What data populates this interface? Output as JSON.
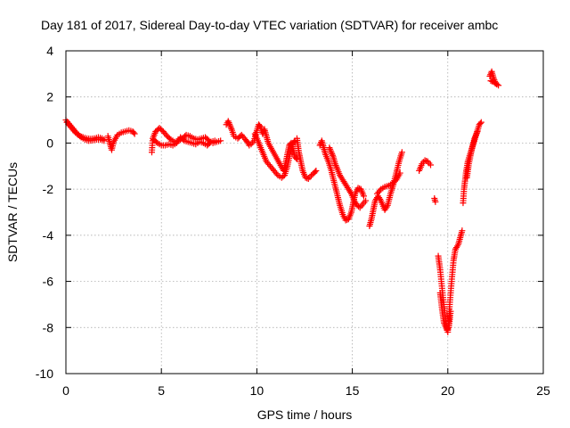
{
  "chart_data": {
    "type": "scatter",
    "title": "Day 181 of 2017, Sidereal Day-to-day VTEC variation (SDTVAR) for receiver ambc",
    "xlabel": "GPS time / hours",
    "ylabel": "SDTVAR / TECUs",
    "xlim": [
      0,
      25
    ],
    "ylim": [
      -10,
      4
    ],
    "xticks": [
      0,
      5,
      10,
      15,
      20,
      25
    ],
    "yticks": [
      -10,
      -8,
      -6,
      -4,
      -2,
      0,
      2,
      4
    ],
    "xtick_labels": [
      "0",
      "5",
      "10",
      "15",
      "20",
      "25"
    ],
    "ytick_labels": [
      "-10",
      "-8",
      "-6",
      "-4",
      "-2",
      "0",
      "2",
      "4"
    ],
    "grid": true,
    "marker": "+",
    "color": "#ff0000",
    "series": [
      {
        "name": "SDTVAR",
        "segments": [
          [
            [
              0.0,
              1.0
            ],
            [
              0.15,
              0.85
            ],
            [
              0.3,
              0.7
            ],
            [
              0.45,
              0.55
            ],
            [
              0.6,
              0.4
            ],
            [
              0.75,
              0.3
            ],
            [
              0.9,
              0.25
            ],
            [
              1.1,
              0.2
            ],
            [
              1.3,
              0.18
            ],
            [
              1.5,
              0.2
            ],
            [
              1.7,
              0.25
            ],
            [
              1.9,
              0.2
            ],
            [
              2.0,
              0.15
            ]
          ],
          [
            [
              0.05,
              0.9
            ],
            [
              0.2,
              0.75
            ],
            [
              0.35,
              0.6
            ],
            [
              0.5,
              0.45
            ],
            [
              0.65,
              0.35
            ],
            [
              0.8,
              0.25
            ],
            [
              1.0,
              0.15
            ],
            [
              1.2,
              0.1
            ],
            [
              1.4,
              0.12
            ],
            [
              1.6,
              0.15
            ],
            [
              1.8,
              0.15
            ],
            [
              2.0,
              0.1
            ]
          ],
          [
            [
              2.2,
              0.3
            ],
            [
              2.3,
              0.0
            ],
            [
              2.4,
              -0.3
            ],
            [
              2.5,
              0.05
            ],
            [
              2.7,
              0.35
            ],
            [
              2.9,
              0.45
            ],
            [
              3.1,
              0.5
            ],
            [
              3.3,
              0.55
            ],
            [
              3.5,
              0.5
            ],
            [
              3.6,
              0.4
            ]
          ],
          [
            [
              4.5,
              -0.4
            ],
            [
              4.55,
              0.2
            ],
            [
              4.7,
              0.5
            ],
            [
              4.9,
              0.65
            ],
            [
              5.1,
              0.5
            ],
            [
              5.3,
              0.3
            ],
            [
              5.5,
              0.15
            ],
            [
              5.7,
              0.05
            ],
            [
              5.9,
              0.1
            ],
            [
              6.1,
              0.2
            ],
            [
              6.3,
              0.35
            ],
            [
              6.5,
              0.3
            ],
            [
              6.7,
              0.2
            ],
            [
              6.9,
              0.15
            ],
            [
              7.1,
              0.2
            ],
            [
              7.3,
              0.25
            ],
            [
              7.5,
              0.1
            ],
            [
              7.7,
              0.0
            ],
            [
              7.9,
              0.05
            ],
            [
              8.1,
              0.1
            ]
          ],
          [
            [
              4.6,
              0.15
            ],
            [
              4.8,
              0.0
            ],
            [
              5.0,
              -0.1
            ],
            [
              5.2,
              -0.1
            ],
            [
              5.4,
              -0.05
            ],
            [
              5.6,
              -0.1
            ],
            [
              5.8,
              0.0
            ],
            [
              6.0,
              0.25
            ],
            [
              6.2,
              0.1
            ],
            [
              6.4,
              0.05
            ],
            [
              6.6,
              0.0
            ],
            [
              6.8,
              -0.05
            ],
            [
              7.0,
              0.05
            ],
            [
              7.2,
              0.0
            ],
            [
              7.4,
              -0.1
            ],
            [
              7.6,
              0.05
            ],
            [
              7.8,
              0.1
            ]
          ],
          [
            [
              8.4,
              0.8
            ],
            [
              8.5,
              0.95
            ],
            [
              8.6,
              0.75
            ],
            [
              8.7,
              0.55
            ],
            [
              8.8,
              0.3
            ],
            [
              9.0,
              0.2
            ],
            [
              9.2,
              0.35
            ],
            [
              9.4,
              0.15
            ],
            [
              9.5,
              0.05
            ],
            [
              9.6,
              -0.1
            ],
            [
              9.7,
              -0.05
            ],
            [
              9.85,
              0.1
            ],
            [
              10.0,
              0.55
            ],
            [
              10.1,
              0.8
            ],
            [
              10.2,
              0.7
            ],
            [
              10.3,
              0.4
            ],
            [
              10.4,
              0.6
            ],
            [
              10.5,
              0.3
            ],
            [
              10.6,
              0.0
            ],
            [
              10.8,
              -0.3
            ],
            [
              11.0,
              -0.6
            ],
            [
              11.2,
              -0.9
            ],
            [
              11.4,
              -1.2
            ],
            [
              11.5,
              -0.9
            ],
            [
              11.6,
              -0.5
            ],
            [
              11.7,
              -0.1
            ],
            [
              11.8,
              0.0
            ],
            [
              11.9,
              -0.3
            ],
            [
              12.0,
              -0.6
            ],
            [
              12.1,
              -0.7
            ]
          ],
          [
            [
              9.9,
              0.4
            ],
            [
              10.05,
              0.1
            ],
            [
              10.2,
              -0.2
            ],
            [
              10.35,
              -0.5
            ],
            [
              10.5,
              -0.8
            ],
            [
              10.7,
              -1.0
            ],
            [
              10.9,
              -1.2
            ],
            [
              11.1,
              -1.4
            ],
            [
              11.3,
              -1.5
            ],
            [
              11.45,
              -1.4
            ],
            [
              11.6,
              -1.0
            ],
            [
              11.75,
              -0.4
            ],
            [
              11.9,
              0.0
            ],
            [
              12.0,
              0.1
            ]
          ],
          [
            [
              12.1,
              0.2
            ],
            [
              12.2,
              -0.4
            ],
            [
              12.3,
              -0.8
            ],
            [
              12.4,
              -1.2
            ],
            [
              12.55,
              -1.5
            ],
            [
              12.7,
              -1.55
            ],
            [
              12.85,
              -1.4
            ],
            [
              13.0,
              -1.3
            ],
            [
              13.1,
              -1.2
            ]
          ],
          [
            [
              13.3,
              -0.1
            ],
            [
              13.4,
              0.1
            ],
            [
              13.5,
              -0.2
            ],
            [
              13.6,
              -0.5
            ],
            [
              13.75,
              -0.8
            ],
            [
              13.9,
              -1.2
            ],
            [
              14.05,
              -1.7
            ],
            [
              14.2,
              -2.2
            ],
            [
              14.35,
              -2.7
            ],
            [
              14.5,
              -3.1
            ],
            [
              14.65,
              -3.35
            ],
            [
              14.8,
              -3.3
            ],
            [
              14.95,
              -3.0
            ],
            [
              15.05,
              -2.6
            ],
            [
              15.15,
              -2.2
            ],
            [
              15.3,
              -1.95
            ],
            [
              15.45,
              -2.0
            ],
            [
              15.6,
              -2.3
            ]
          ],
          [
            [
              13.8,
              -0.2
            ],
            [
              13.9,
              -0.4
            ],
            [
              14.0,
              -0.6
            ],
            [
              14.1,
              -0.9
            ],
            [
              14.2,
              -1.1
            ],
            [
              14.35,
              -1.4
            ],
            [
              14.5,
              -1.6
            ],
            [
              14.65,
              -1.8
            ],
            [
              14.8,
              -2.0
            ],
            [
              14.95,
              -2.2
            ],
            [
              15.1,
              -2.5
            ],
            [
              15.25,
              -2.7
            ],
            [
              15.4,
              -2.8
            ],
            [
              15.55,
              -2.65
            ],
            [
              15.7,
              -2.5
            ]
          ],
          [
            [
              15.9,
              -3.6
            ],
            [
              16.0,
              -3.3
            ],
            [
              16.1,
              -2.9
            ],
            [
              16.2,
              -2.5
            ],
            [
              16.35,
              -2.3
            ],
            [
              16.5,
              -2.5
            ],
            [
              16.7,
              -2.9
            ],
            [
              16.85,
              -2.7
            ],
            [
              17.0,
              -2.2
            ],
            [
              17.15,
              -1.8
            ],
            [
              17.3,
              -1.3
            ],
            [
              17.45,
              -0.8
            ],
            [
              17.6,
              -0.4
            ]
          ],
          [
            [
              16.3,
              -2.2
            ],
            [
              16.5,
              -2.0
            ],
            [
              16.7,
              -1.9
            ],
            [
              16.9,
              -1.85
            ],
            [
              17.1,
              -1.75
            ],
            [
              17.3,
              -1.6
            ],
            [
              17.5,
              -1.3
            ]
          ],
          [
            [
              18.5,
              -1.2
            ],
            [
              18.65,
              -0.9
            ],
            [
              18.8,
              -0.75
            ],
            [
              18.95,
              -0.8
            ],
            [
              19.1,
              -0.95
            ]
          ],
          [
            [
              19.3,
              -2.4
            ],
            [
              19.35,
              -2.55
            ]
          ],
          [
            [
              19.5,
              -4.9
            ],
            [
              19.6,
              -5.5
            ],
            [
              19.7,
              -6.3
            ],
            [
              19.8,
              -7.1
            ],
            [
              19.9,
              -7.8
            ],
            [
              20.0,
              -8.2
            ],
            [
              20.05,
              -7.7
            ],
            [
              20.1,
              -7.0
            ],
            [
              20.2,
              -6.0
            ],
            [
              20.3,
              -5.1
            ],
            [
              20.4,
              -4.6
            ],
            [
              20.55,
              -4.4
            ],
            [
              20.65,
              -4.1
            ],
            [
              20.75,
              -3.8
            ]
          ],
          [
            [
              19.6,
              -6.5
            ],
            [
              19.7,
              -7.2
            ],
            [
              19.8,
              -7.8
            ],
            [
              19.95,
              -8.1
            ],
            [
              20.05,
              -8.0
            ],
            [
              20.15,
              -7.3
            ]
          ],
          [
            [
              20.8,
              -2.6
            ],
            [
              20.85,
              -2.0
            ],
            [
              20.95,
              -1.3
            ],
            [
              21.05,
              -0.8
            ],
            [
              21.2,
              -0.4
            ],
            [
              21.35,
              0.0
            ],
            [
              21.5,
              0.4
            ],
            [
              21.65,
              0.8
            ],
            [
              21.75,
              0.9
            ]
          ],
          [
            [
              21.0,
              -1.5
            ],
            [
              21.1,
              -0.9
            ],
            [
              21.25,
              -0.3
            ],
            [
              21.4,
              0.2
            ],
            [
              21.55,
              0.5
            ]
          ],
          [
            [
              22.2,
              2.9
            ],
            [
              22.3,
              3.1
            ],
            [
              22.4,
              2.8
            ],
            [
              22.5,
              2.6
            ],
            [
              22.65,
              2.5
            ]
          ],
          [
            [
              22.25,
              2.7
            ],
            [
              22.4,
              2.65
            ],
            [
              22.55,
              2.55
            ]
          ]
        ]
      }
    ]
  }
}
